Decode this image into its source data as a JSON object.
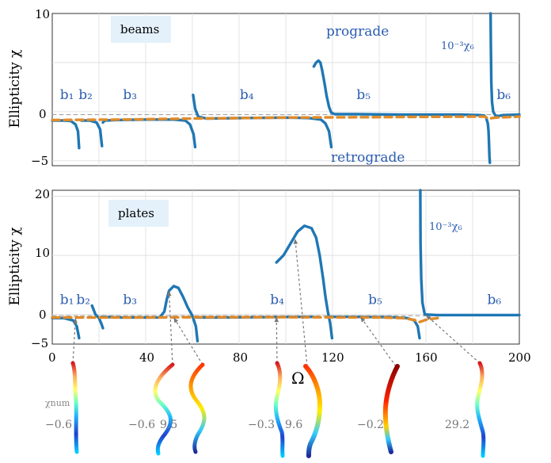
{
  "chart_data": [
    {
      "type": "line",
      "panel": "beams",
      "xlim": [
        0,
        200
      ],
      "ylim": [
        -5.5,
        10
      ],
      "ylabel": "Ellipticity χ",
      "grid": true,
      "yticks": [
        "−5",
        "0",
        "10"
      ],
      "tag": "beams",
      "annotations": [
        "prograde",
        "retrograde",
        "10⁻³χ₆"
      ],
      "branch_labels": [
        {
          "text": "b₁",
          "x": 6,
          "y": 1.3
        },
        {
          "text": "b₂",
          "x": 14,
          "y": 1.3
        },
        {
          "text": "b₃",
          "x": 33,
          "y": 1.3
        },
        {
          "text": "b₄",
          "x": 83,
          "y": 1.3
        },
        {
          "text": "b₅",
          "x": 133,
          "y": 1.3
        },
        {
          "text": "b₆",
          "x": 193,
          "y": 1.3
        }
      ],
      "series": [
        {
          "style": "solid",
          "color": "#1f77b4",
          "values": [
            [
              0,
              -0.9
            ],
            [
              5,
              -0.9
            ],
            [
              8,
              -0.95
            ],
            [
              10,
              -1.3
            ],
            [
              11,
              -2
            ],
            [
              11.5,
              -3.7
            ]
          ]
        },
        {
          "style": "solid",
          "color": "#1f77b4",
          "values": [
            [
              12.5,
              -0.9
            ],
            [
              16,
              -0.9
            ],
            [
              19,
              -1.1
            ],
            [
              20.5,
              -1.8
            ],
            [
              21.3,
              -3.5
            ]
          ]
        },
        {
          "style": "solid",
          "color": "#1f77b4",
          "values": [
            [
              21.7,
              -1.1
            ],
            [
              22.5,
              -0.9
            ],
            [
              27,
              -0.85
            ],
            [
              40,
              -0.8
            ],
            [
              52,
              -0.8
            ],
            [
              57,
              -0.9
            ],
            [
              59,
              -1.3
            ],
            [
              60.5,
              -2.3
            ],
            [
              61.2,
              -3.6
            ]
          ]
        },
        {
          "style": "solid",
          "color": "#1f77b4",
          "values": [
            [
              60.3,
              1.7
            ],
            [
              61.2,
              0.3
            ],
            [
              62.5,
              -0.5
            ],
            [
              66,
              -0.7
            ],
            [
              80,
              -0.65
            ],
            [
              100,
              -0.6
            ],
            [
              110,
              -0.65
            ],
            [
              115,
              -0.8
            ],
            [
              117,
              -1.2
            ],
            [
              118.5,
              -2
            ],
            [
              119.5,
              -3.6
            ]
          ]
        },
        {
          "style": "solid",
          "color": "#1f77b4",
          "values": [
            [
              112,
              4.6
            ],
            [
              113,
              5.0
            ],
            [
              114,
              5.2
            ],
            [
              114.8,
              5.0
            ],
            [
              115.5,
              4.3
            ],
            [
              116.5,
              3
            ],
            [
              117.5,
              1.6
            ],
            [
              118.5,
              0.5
            ],
            [
              119.5,
              -0.1
            ],
            [
              121,
              -0.25
            ],
            [
              130,
              -0.25
            ],
            [
              150,
              -0.3
            ],
            [
              175,
              -0.3
            ],
            [
              183,
              -0.35
            ],
            [
              185,
              -0.4
            ],
            [
              186,
              -0.7
            ]
          ]
        },
        {
          "style": "solid",
          "color": "#1f77b4",
          "values": [
            [
              186,
              -0.8
            ],
            [
              186.5,
              -1.2
            ],
            [
              186.8,
              -2
            ],
            [
              187,
              -3
            ],
            [
              187.2,
              -4.5
            ],
            [
              187.4,
              -5.2
            ]
          ]
        },
        {
          "style": "solid",
          "color": "#1f77b4",
          "values": [
            [
              187.7,
              10
            ],
            [
              187.8,
              7
            ],
            [
              188,
              3
            ],
            [
              188.3,
              1
            ],
            [
              188.8,
              0
            ],
            [
              190,
              -0.5
            ],
            [
              193,
              -0.35
            ],
            [
              200,
              -0.3
            ]
          ]
        },
        {
          "style": "dashed",
          "color": "#e08b2a",
          "values": [
            [
              0,
              -0.85
            ],
            [
              30,
              -0.8
            ],
            [
              60,
              -0.7
            ],
            [
              100,
              -0.6
            ],
            [
              140,
              -0.55
            ],
            [
              180,
              -0.5
            ],
            [
              185,
              -0.5
            ],
            [
              187,
              -0.7
            ],
            [
              190,
              -0.6
            ],
            [
              200,
              -0.5
            ]
          ]
        },
        {
          "style": "thin-dashed",
          "color": "#999999",
          "values": [
            [
              0,
              -0.3
            ],
            [
              200,
              -0.3
            ]
          ]
        }
      ]
    },
    {
      "type": "line",
      "panel": "plates",
      "xlim": [
        0,
        200
      ],
      "ylim": [
        -5,
        21
      ],
      "ylabel": "Ellipticity χ",
      "xlabel": "Ω",
      "grid": true,
      "xticks": [
        "0",
        "40",
        "80",
        "120",
        "160",
        "200"
      ],
      "yticks": [
        "−5",
        "0",
        "10",
        "20"
      ],
      "tag": "plates",
      "annotations": [
        "10⁻³χ₆"
      ],
      "branch_labels": [
        {
          "text": "b₁",
          "x": 6,
          "y": 1.8
        },
        {
          "text": "b₂",
          "x": 13,
          "y": 1.8
        },
        {
          "text": "b₃",
          "x": 33,
          "y": 1.8
        },
        {
          "text": "b₄",
          "x": 96,
          "y": 1.8
        },
        {
          "text": "b₅",
          "x": 138,
          "y": 1.8
        },
        {
          "text": "b₆",
          "x": 189,
          "y": 1.8
        }
      ],
      "series": [
        {
          "style": "solid",
          "color": "#1f77b4",
          "values": [
            [
              0,
              -0.6
            ],
            [
              5,
              -0.6
            ],
            [
              9,
              -1
            ],
            [
              10.5,
              -2
            ],
            [
              11.5,
              -4
            ]
          ]
        },
        {
          "style": "solid",
          "color": "#1f77b4",
          "values": [
            [
              17,
              1.5
            ],
            [
              18.5,
              0
            ],
            [
              20,
              -0.6
            ],
            [
              21,
              -1.5
            ],
            [
              21.7,
              -2.3
            ]
          ]
        },
        {
          "style": "solid",
          "color": "#1f77b4",
          "values": [
            [
              21,
              -0.4
            ],
            [
              30,
              -0.5
            ],
            [
              40,
              -0.5
            ],
            [
              46,
              -0.5
            ],
            [
              48,
              0.5
            ],
            [
              49,
              2.5
            ],
            [
              50,
              4
            ],
            [
              52,
              4.8
            ],
            [
              54,
              4.5
            ],
            [
              56,
              3
            ],
            [
              58,
              1.2
            ],
            [
              60,
              -0.2
            ],
            [
              61.5,
              -2
            ],
            [
              62.2,
              -4.5
            ]
          ]
        },
        {
          "style": "solid",
          "color": "#1f77b4",
          "values": [
            [
              61.5,
              -0.5
            ],
            [
              70,
              -0.5
            ],
            [
              90,
              -0.45
            ],
            [
              105,
              -0.4
            ],
            [
              112,
              -0.4
            ]
          ]
        },
        {
          "style": "solid",
          "color": "#1f77b4",
          "values": [
            [
              96,
              8.8
            ],
            [
              99,
              10
            ],
            [
              102,
              12
            ],
            [
              105,
              14
            ],
            [
              108,
              15
            ],
            [
              111,
              14.6
            ],
            [
              113,
              13
            ],
            [
              114.5,
              10
            ],
            [
              116,
              6
            ],
            [
              117,
              3
            ],
            [
              118,
              0.5
            ],
            [
              119,
              -1.5
            ],
            [
              119.8,
              -4
            ]
          ]
        },
        {
          "style": "solid",
          "color": "#1f77b4",
          "values": [
            [
              119,
              -0.4
            ],
            [
              130,
              -0.4
            ],
            [
              145,
              -0.45
            ],
            [
              152,
              -0.6
            ],
            [
              155,
              -1
            ],
            [
              156.5,
              -2
            ],
            [
              157.3,
              -4
            ]
          ]
        },
        {
          "style": "solid",
          "color": "#1f77b4",
          "values": [
            [
              157.6,
              21
            ],
            [
              157.7,
              12
            ],
            [
              158,
              6
            ],
            [
              158.5,
              2
            ],
            [
              159.5,
              0
            ],
            [
              165,
              -0.1
            ],
            [
              180,
              -0.1
            ],
            [
              200,
              -0.1
            ]
          ]
        },
        {
          "style": "dashed",
          "color": "#e08b2a",
          "values": [
            [
              0,
              -0.5
            ],
            [
              40,
              -0.5
            ],
            [
              60,
              -0.45
            ],
            [
              100,
              -0.45
            ],
            [
              140,
              -0.5
            ],
            [
              150,
              -0.6
            ],
            [
              155,
              -0.9
            ],
            [
              157,
              -1.3
            ],
            [
              160,
              -0.9
            ],
            [
              165,
              -0.6
            ]
          ]
        },
        {
          "style": "thin-dashed",
          "color": "#999999",
          "values": [
            [
              0,
              -0.2
            ],
            [
              200,
              -0.2
            ]
          ]
        }
      ],
      "mode_labels": {
        "title": "χnum",
        "values": [
          "−0.6",
          "−0.6",
          "9.5",
          "−0.3",
          "9.6",
          "−0.2",
          "29.2"
        ]
      }
    }
  ],
  "colors": {
    "blue_line": "#1f77b4",
    "orange_dash": "#e08b2a",
    "tag_bg": "#e4f1fb",
    "annotation_blue": "#2a5db0"
  }
}
